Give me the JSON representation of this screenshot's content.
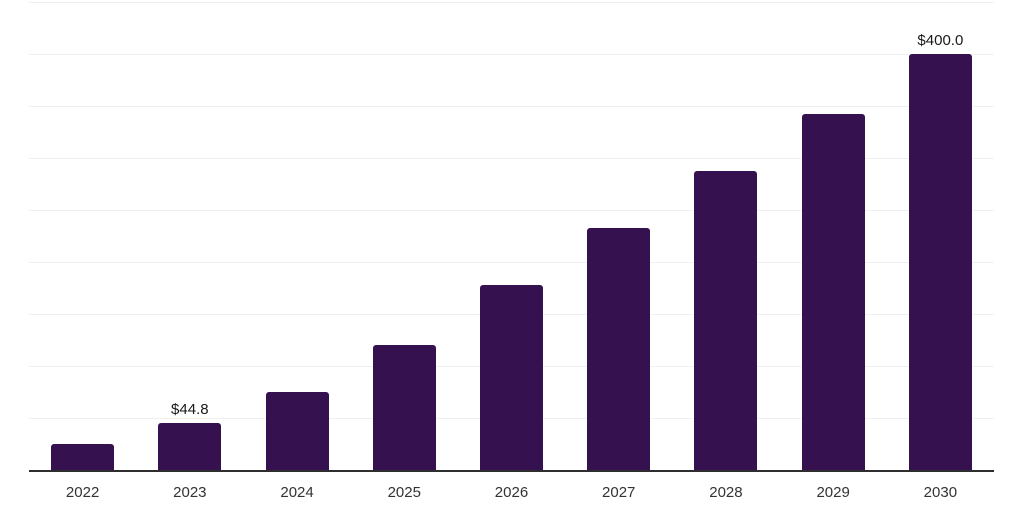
{
  "chart_data": {
    "type": "bar",
    "title": "",
    "xlabel": "",
    "ylabel": "",
    "categories": [
      "2022",
      "2023",
      "2024",
      "2025",
      "2026",
      "2027",
      "2028",
      "2029",
      "2030"
    ],
    "values": [
      25.0,
      44.8,
      75.1,
      120.3,
      177.8,
      232.4,
      287.6,
      342.1,
      400.0
    ],
    "data_labels": [
      "",
      "$44.8",
      "",
      "",
      "",
      "",
      "",
      "",
      "$400.0"
    ],
    "ylim": [
      0,
      450
    ],
    "gridline_step": 50,
    "grid": "horizontal-only",
    "legend": "none",
    "y_axis_labels_visible": false,
    "colors": {
      "bar_fill": "#351150",
      "gridline": "#f0f0f0",
      "axis_line": "#2e2e2e",
      "tick_label": "#333333",
      "data_label": "#1a1a1a",
      "background": "#ffffff"
    }
  }
}
